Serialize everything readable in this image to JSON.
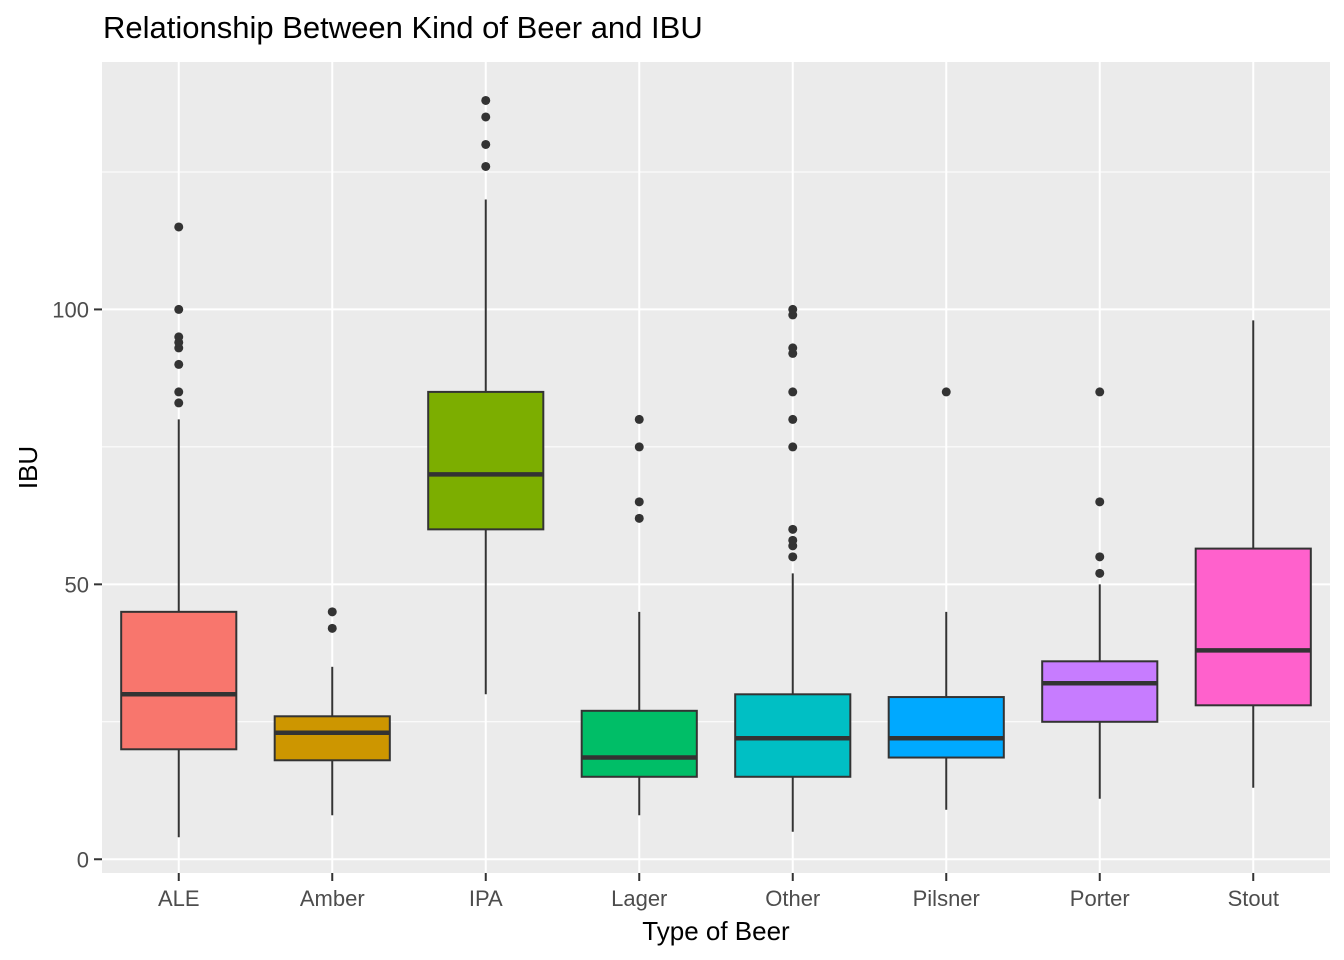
{
  "chart_data": {
    "type": "box",
    "title": "Relationship Between Kind of Beer and IBU",
    "xlabel": "Type of Beer",
    "ylabel": "IBU",
    "ylim": [
      -2.5,
      145
    ],
    "y_ticks": [
      0,
      50,
      100
    ],
    "y_tick_labels": [
      "0",
      "50",
      "100"
    ],
    "grid": true,
    "legend": "none",
    "categories": [
      "ALE",
      "Amber",
      "IPA",
      "Lager",
      "Other",
      "Pilsner",
      "Porter",
      "Stout"
    ],
    "boxes": [
      {
        "category": "ALE",
        "min": 4,
        "q1": 20,
        "median": 30,
        "q3": 45,
        "max": 80,
        "outliers": [
          83,
          85,
          90,
          93,
          94,
          95,
          100,
          115
        ],
        "color": "#F8766D"
      },
      {
        "category": "Amber",
        "min": 8,
        "q1": 18,
        "median": 23,
        "q3": 26,
        "max": 35,
        "outliers": [
          42,
          45
        ],
        "color": "#CD9600"
      },
      {
        "category": "IPA",
        "min": 30,
        "q1": 60,
        "median": 70,
        "q3": 85,
        "max": 120,
        "outliers": [
          126,
          130,
          135,
          138
        ],
        "color": "#7CAE00"
      },
      {
        "category": "Lager",
        "min": 8,
        "q1": 15,
        "median": 18.5,
        "q3": 27,
        "max": 45,
        "outliers": [
          62,
          65,
          75,
          80
        ],
        "color": "#00BE67"
      },
      {
        "category": "Other",
        "min": 5,
        "q1": 15,
        "median": 22,
        "q3": 30,
        "max": 52,
        "outliers": [
          55,
          57,
          58,
          60,
          75,
          80,
          85,
          92,
          93,
          99,
          100
        ],
        "color": "#00BFC4"
      },
      {
        "category": "Pilsner",
        "min": 9,
        "q1": 18.5,
        "median": 22,
        "q3": 29.5,
        "max": 45,
        "outliers": [
          85
        ],
        "color": "#00A9FF"
      },
      {
        "category": "Porter",
        "min": 11,
        "q1": 25,
        "median": 32,
        "q3": 36,
        "max": 50,
        "outliers": [
          52,
          55,
          65,
          85
        ],
        "color": "#C77CFF"
      },
      {
        "category": "Stout",
        "min": 13,
        "q1": 28,
        "median": 38,
        "q3": 56.5,
        "max": 98,
        "outliers": [],
        "color": "#FF61CC"
      }
    ],
    "panel_background": "#EBEBEB",
    "grid_color": "#FFFFFF",
    "line_color": "#333333"
  }
}
